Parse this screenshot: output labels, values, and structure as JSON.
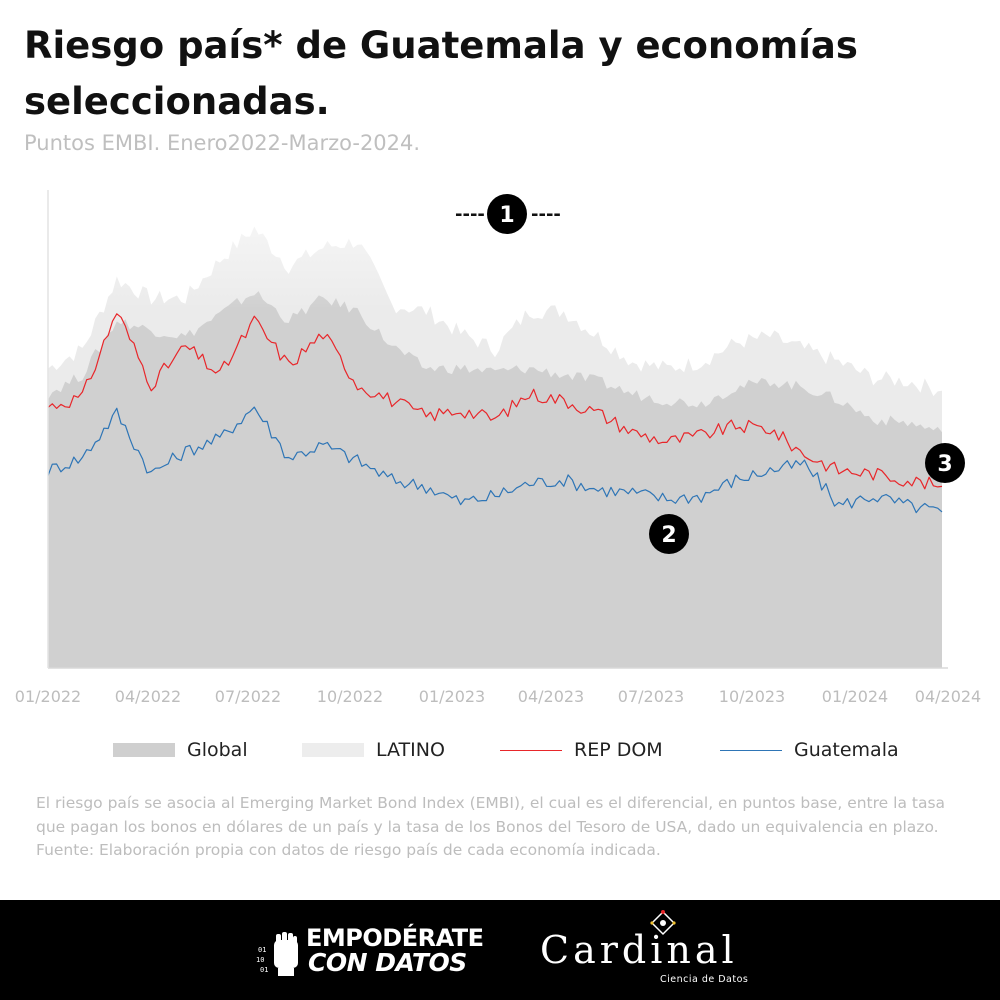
{
  "header": {
    "title": "Riesgo país* de Guatemala y economías seleccionadas.",
    "subtitle": "Puntos EMBI. Enero2022-Marzo-2024."
  },
  "chart_data": {
    "type": "area",
    "title": "Riesgo país* de Guatemala y economías seleccionadas.",
    "subtitle": "Puntos EMBI. Enero2022-Marzo-2024.",
    "x_ticks": [
      "01/2022",
      "04/2022",
      "07/2022",
      "10/2022",
      "01/2023",
      "04/2023",
      "07/2023",
      "10/2023",
      "01/2024",
      "04/2024"
    ],
    "x_axis": {
      "start": "2022-01",
      "end": "2024-04"
    },
    "y_axis_visible": false,
    "grid": false,
    "legend_position": "bottom",
    "x": [
      "2022-01",
      "2022-02",
      "2022-03",
      "2022-04",
      "2022-05",
      "2022-06",
      "2022-07",
      "2022-08",
      "2022-09",
      "2022-10",
      "2022-11",
      "2022-12",
      "2023-01",
      "2023-02",
      "2023-03",
      "2023-04",
      "2023-05",
      "2023-06",
      "2023-07",
      "2023-08",
      "2023-09",
      "2023-10",
      "2023-11",
      "2023-12",
      "2024-01",
      "2024-02",
      "2024-03"
    ],
    "series": [
      {
        "name": "Global",
        "kind": "area",
        "color": "#d0d0d0",
        "values": [
          430,
          460,
          545,
          530,
          520,
          555,
          590,
          545,
          580,
          560,
          505,
          470,
          470,
          465,
          470,
          460,
          450,
          430,
          420,
          415,
          440,
          450,
          440,
          420,
          390,
          385,
          370
        ]
      },
      {
        "name": "LATINO",
        "kind": "area",
        "color": "#ebebeb",
        "values": [
          470,
          500,
          610,
          580,
          580,
          640,
          690,
          630,
          660,
          670,
          570,
          560,
          525,
          500,
          560,
          560,
          520,
          480,
          470,
          480,
          510,
          520,
          500,
          480,
          455,
          450,
          435
        ]
      },
      {
        "name": "REP DOM",
        "kind": "line",
        "color": "#e8262a",
        "values": [
          410,
          425,
          560,
          445,
          505,
          460,
          545,
          475,
          525,
          445,
          420,
          395,
          405,
          390,
          430,
          420,
          400,
          370,
          355,
          365,
          380,
          375,
          335,
          310,
          305,
          295,
          285
        ]
      },
      {
        "name": "Guatemala",
        "kind": "line",
        "color": "#2e75b6",
        "values": [
          310,
          330,
          400,
          305,
          340,
          360,
          410,
          330,
          350,
          325,
          295,
          285,
          260,
          270,
          290,
          295,
          280,
          275,
          265,
          270,
          295,
          310,
          320,
          255,
          270,
          255,
          245
        ]
      }
    ],
    "annotations": [
      {
        "label": "1",
        "text": "----  ----",
        "series": "LATINO"
      },
      {
        "label": "2",
        "series": "Guatemala"
      },
      {
        "label": "3",
        "series": "REP DOM"
      }
    ],
    "y_domain": [
      0,
      750
    ]
  },
  "legend": {
    "items": [
      {
        "label": "Global",
        "color": "#cfcfcf"
      },
      {
        "label": "LATINO",
        "color": "#ededed"
      },
      {
        "label": "REP DOM",
        "color": "#e8262a"
      },
      {
        "label": "Guatemala",
        "color": "#2e75b6"
      }
    ]
  },
  "notes": {
    "line1": "El riesgo país se asocia al Emerging Market Bond Index (EMBI), el cual es el diferencial, en puntos base, entre la tasa que pagan los bonos en dólares de un país y la tasa de los Bonos del Tesoro de USA, dado un equivalencia en plazo.",
    "line2": "Fuente: Elaboración propia con datos de riesgo país de cada economía indicada."
  },
  "footer": {
    "logo_left_line1": "EMPODÉRATE",
    "logo_left_line2": "CON DATOS",
    "logo_left_icon": "raised-fist-binary-icon",
    "logo_right_name": "Cardinal",
    "logo_right_tagline": "Ciencia de Datos",
    "logo_right_icon": "diamond-node-icon"
  }
}
